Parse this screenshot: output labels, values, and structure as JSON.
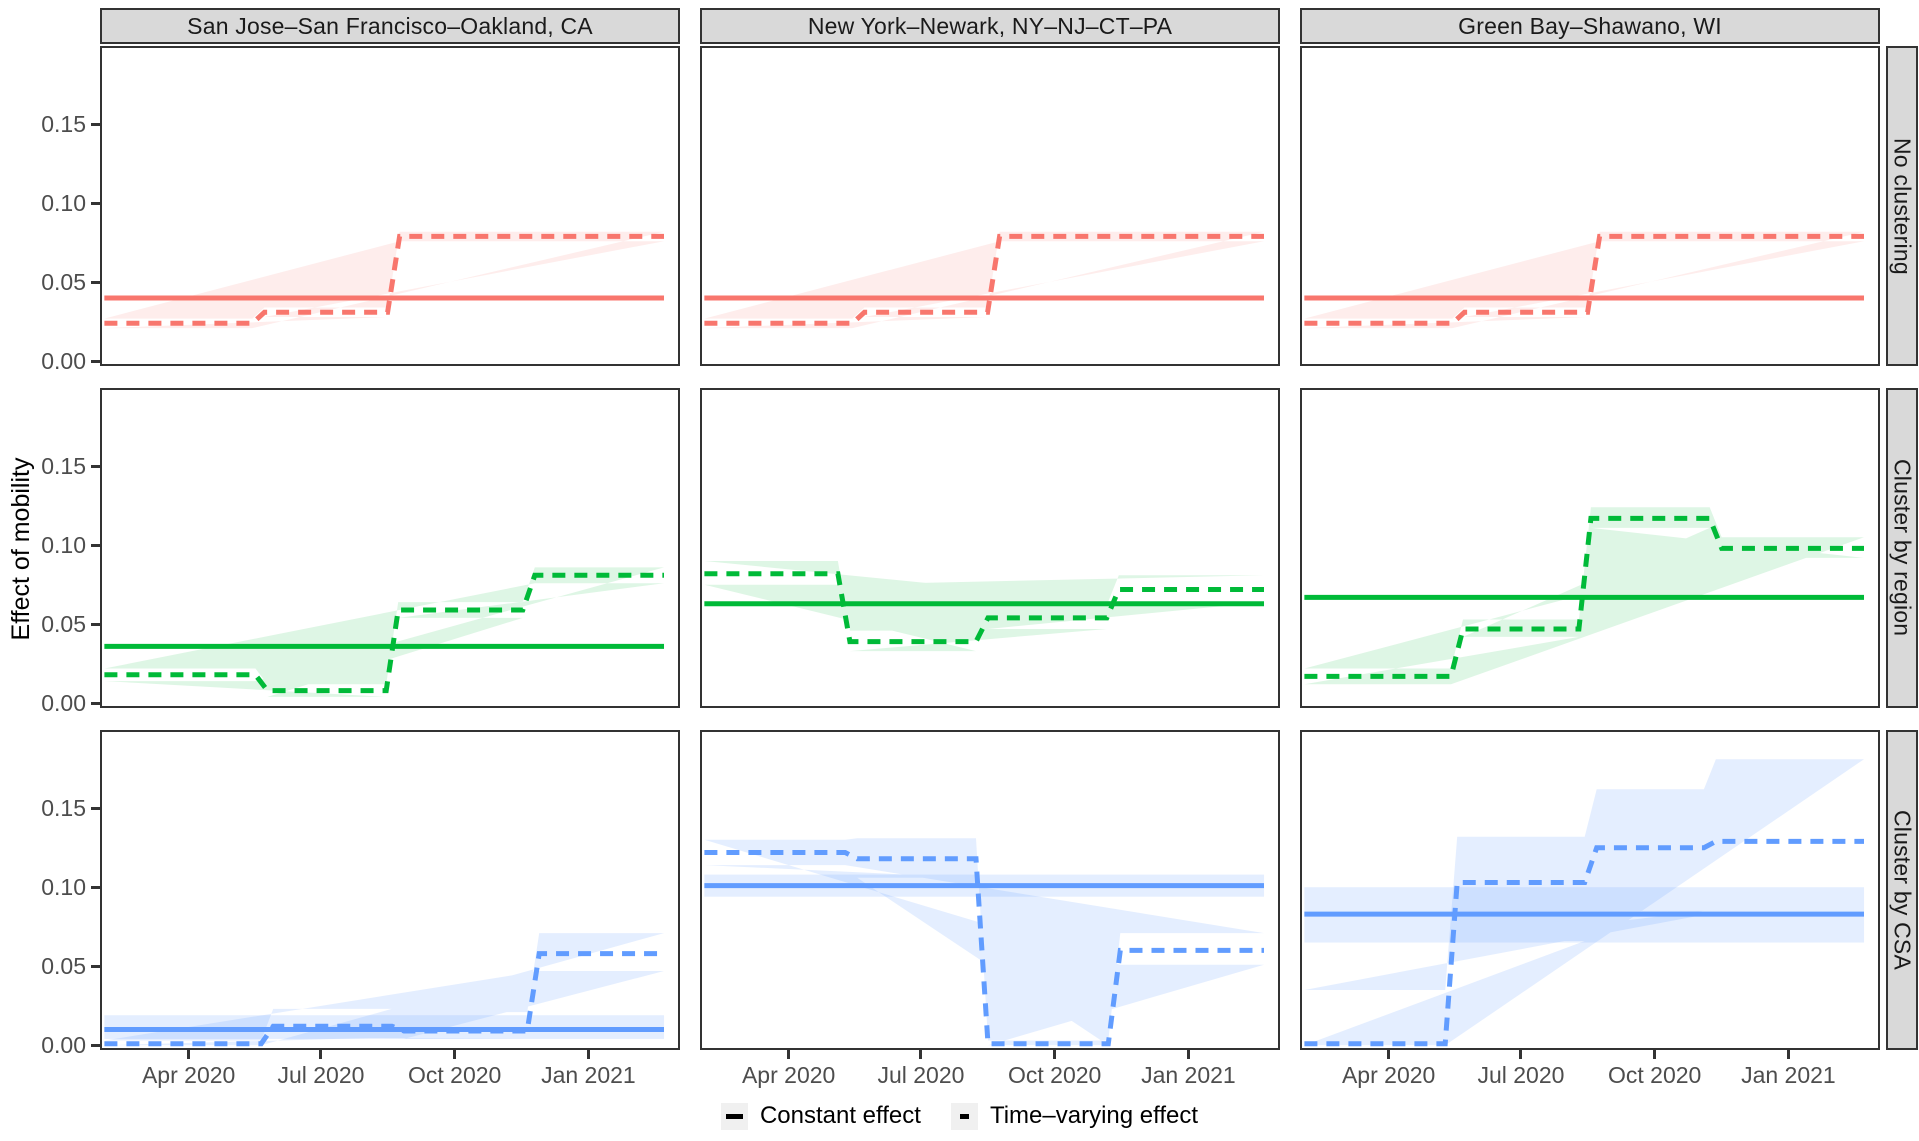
{
  "chart_data": {
    "type": "line",
    "subtype": "step-function-facet-grid",
    "title": "",
    "ylabel": "Effect of mobility",
    "facet_columns": [
      "San Jose–San Francisco–Oakland, CA",
      "New York–Newark, NY–NJ–CT–PA",
      "Green Bay–Shawano, WI"
    ],
    "facet_rows": [
      "No clustering",
      "Cluster by region",
      "Cluster by CSA"
    ],
    "row_colors": [
      "#F8766D",
      "#00BA38",
      "#619CFF"
    ],
    "band_opacity": [
      0.13,
      0.13,
      0.17
    ],
    "strip_fill": "#D9D9D9",
    "panel_border_color": "#333333",
    "axis_text_color": "#4D4D4D",
    "grid": false,
    "x_axis": {
      "tick_labels": [
        "Apr 2020",
        "Jul 2020",
        "Oct 2020",
        "Jan 2021"
      ],
      "tick_dates": [
        "2020-04-01",
        "2020-07-01",
        "2020-10-01",
        "2021-01-01"
      ],
      "domain": [
        "2020-01-31",
        "2021-03-05"
      ]
    },
    "y_axis": {
      "tick_labels": [
        "0.00",
        "0.05",
        "0.10",
        "0.15"
      ],
      "tick_values": [
        0,
        0.05,
        0.1,
        0.15
      ],
      "domain": [
        -0.003,
        0.1995
      ]
    },
    "data_range": [
      "2020-02-03",
      "2021-02-22"
    ],
    "legend": [
      {
        "label": "Constant effect",
        "linetype": "solid"
      },
      {
        "label": "Time–varying effect",
        "linetype": "dashed"
      }
    ],
    "legend_position": "bottom",
    "panels": [
      {
        "row": "No clustering",
        "column": "San Jose–San Francisco–Oakland, CA",
        "constant_effect": {
          "value": 0.04
        },
        "time_varying_effect": {
          "segments": [
            {
              "from": "2020-02-03",
              "to": "2020-05-19",
              "value": 0.024,
              "lo": 0.021,
              "hi": 0.027
            },
            {
              "from": "2020-05-19",
              "to": "2020-08-20",
              "value": 0.031,
              "lo": 0.028,
              "hi": 0.034
            },
            {
              "from": "2020-08-20",
              "to": "2021-02-22",
              "value": 0.079,
              "lo": 0.076,
              "hi": 0.082
            }
          ]
        }
      },
      {
        "row": "No clustering",
        "column": "New York–Newark, NY–NJ–CT–PA",
        "constant_effect": {
          "value": 0.04
        },
        "time_varying_effect": {
          "segments": [
            {
              "from": "2020-02-03",
              "to": "2020-05-19",
              "value": 0.024,
              "lo": 0.021,
              "hi": 0.027
            },
            {
              "from": "2020-05-19",
              "to": "2020-08-20",
              "value": 0.031,
              "lo": 0.028,
              "hi": 0.034
            },
            {
              "from": "2020-08-20",
              "to": "2021-02-22",
              "value": 0.079,
              "lo": 0.076,
              "hi": 0.082
            }
          ]
        }
      },
      {
        "row": "No clustering",
        "column": "Green Bay–Shawano, WI",
        "constant_effect": {
          "value": 0.04
        },
        "time_varying_effect": {
          "segments": [
            {
              "from": "2020-02-03",
              "to": "2020-05-19",
              "value": 0.024,
              "lo": 0.021,
              "hi": 0.027
            },
            {
              "from": "2020-05-19",
              "to": "2020-08-20",
              "value": 0.031,
              "lo": 0.028,
              "hi": 0.034
            },
            {
              "from": "2020-08-20",
              "to": "2021-02-22",
              "value": 0.079,
              "lo": 0.076,
              "hi": 0.082
            }
          ]
        }
      },
      {
        "row": "Cluster by region",
        "column": "San Jose–San Francisco–Oakland, CA",
        "constant_effect": {
          "value": 0.036
        },
        "time_varying_effect": {
          "segments": [
            {
              "from": "2020-02-03",
              "to": "2020-05-21",
              "value": 0.018,
              "lo": 0.014,
              "hi": 0.022
            },
            {
              "from": "2020-05-21",
              "to": "2020-08-19",
              "value": 0.008,
              "lo": 0.004,
              "hi": 0.012
            },
            {
              "from": "2020-08-19",
              "to": "2020-11-21",
              "value": 0.059,
              "lo": 0.054,
              "hi": 0.064
            },
            {
              "from": "2020-11-21",
              "to": "2021-02-22",
              "value": 0.081,
              "lo": 0.076,
              "hi": 0.086
            }
          ]
        }
      },
      {
        "row": "Cluster by region",
        "column": "New York–Newark, NY–NJ–CT–PA",
        "constant_effect": {
          "value": 0.063
        },
        "time_varying_effect": {
          "segments": [
            {
              "from": "2020-02-03",
              "to": "2020-05-09",
              "value": 0.082,
              "lo": 0.075,
              "hi": 0.09
            },
            {
              "from": "2020-05-09",
              "to": "2020-08-12",
              "value": 0.039,
              "lo": 0.033,
              "hi": 0.046
            },
            {
              "from": "2020-08-12",
              "to": "2020-11-10",
              "value": 0.054,
              "lo": 0.047,
              "hi": 0.062
            },
            {
              "from": "2020-11-10",
              "to": "2021-02-22",
              "value": 0.072,
              "lo": 0.064,
              "hi": 0.081
            }
          ]
        }
      },
      {
        "row": "Cluster by region",
        "column": "Green Bay–Shawano, WI",
        "constant_effect": {
          "value": 0.067
        },
        "time_varying_effect": {
          "segments": [
            {
              "from": "2020-02-03",
              "to": "2020-05-18",
              "value": 0.017,
              "lo": 0.012,
              "hi": 0.022
            },
            {
              "from": "2020-05-18",
              "to": "2020-08-14",
              "value": 0.047,
              "lo": 0.042,
              "hi": 0.053
            },
            {
              "from": "2020-08-14",
              "to": "2020-11-12",
              "value": 0.117,
              "lo": 0.111,
              "hi": 0.124
            },
            {
              "from": "2020-11-12",
              "to": "2021-02-22",
              "value": 0.098,
              "lo": 0.092,
              "hi": 0.105
            }
          ]
        }
      },
      {
        "row": "Cluster by CSA",
        "column": "San Jose–San Francisco–Oakland, CA",
        "constant_effect": {
          "value": 0.01,
          "lo": 0.004,
          "hi": 0.019
        },
        "time_varying_effect": {
          "segments": [
            {
              "from": "2020-02-03",
              "to": "2020-05-25",
              "value": 0.001,
              "lo": 0.0,
              "hi": 0.003
            },
            {
              "from": "2020-05-25",
              "to": "2020-08-23",
              "value": 0.012,
              "lo": 0.005,
              "hi": 0.023
            },
            {
              "from": "2020-08-23",
              "to": "2020-11-24",
              "value": 0.009,
              "lo": 0.004,
              "hi": 0.021
            },
            {
              "from": "2020-11-24",
              "to": "2021-02-22",
              "value": 0.058,
              "lo": 0.047,
              "hi": 0.071
            }
          ]
        }
      },
      {
        "row": "Cluster by CSA",
        "column": "New York–Newark, NY–NJ–CT–PA",
        "constant_effect": {
          "value": 0.101,
          "lo": 0.094,
          "hi": 0.108
        },
        "time_varying_effect": {
          "segments": [
            {
              "from": "2020-02-03",
              "to": "2020-05-14",
              "value": 0.122,
              "lo": 0.114,
              "hi": 0.13
            },
            {
              "from": "2020-05-14",
              "to": "2020-08-12",
              "value": 0.118,
              "lo": 0.106,
              "hi": 0.131
            },
            {
              "from": "2020-08-12",
              "to": "2020-11-11",
              "value": 0.001,
              "lo": 0.0,
              "hi": 0.003
            },
            {
              "from": "2020-11-11",
              "to": "2021-02-22",
              "value": 0.06,
              "lo": 0.051,
              "hi": 0.071
            }
          ]
        }
      },
      {
        "row": "Cluster by CSA",
        "column": "Green Bay–Shawano, WI",
        "constant_effect": {
          "value": 0.083,
          "lo": 0.065,
          "hi": 0.1
        },
        "time_varying_effect": {
          "segments": [
            {
              "from": "2020-02-03",
              "to": "2020-05-14",
              "value": 0.001,
              "lo": 0.0,
              "hi": 0.035
            },
            {
              "from": "2020-05-14",
              "to": "2020-08-18",
              "value": 0.103,
              "lo": 0.066,
              "hi": 0.132
            },
            {
              "from": "2020-08-18",
              "to": "2020-11-08",
              "value": 0.125,
              "lo": 0.085,
              "hi": 0.162
            },
            {
              "from": "2020-11-08",
              "to": "2021-02-22",
              "value": 0.129,
              "lo": 0.084,
              "hi": 0.181
            }
          ]
        }
      }
    ]
  }
}
